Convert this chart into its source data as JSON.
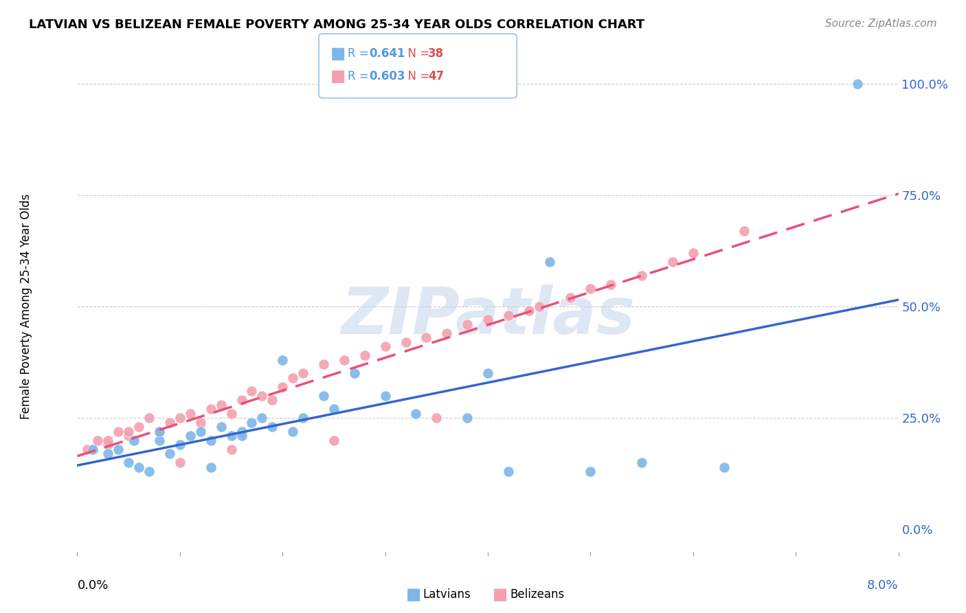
{
  "title": "LATVIAN VS BELIZEAN FEMALE POVERTY AMONG 25-34 YEAR OLDS CORRELATION CHART",
  "source": "Source: ZipAtlas.com",
  "ylabel": "Female Poverty Among 25-34 Year Olds",
  "ytick_labels": [
    "0.0%",
    "25.0%",
    "50.0%",
    "75.0%",
    "100.0%"
  ],
  "ytick_values": [
    0.0,
    0.25,
    0.5,
    0.75,
    1.0
  ],
  "xmin": 0.0,
  "xmax": 0.08,
  "ymin": -0.05,
  "ymax": 1.05,
  "latvian_R": 0.641,
  "latvian_N": 38,
  "belizean_R": 0.603,
  "belizean_N": 47,
  "latvian_color": "#7EB6E8",
  "belizean_color": "#F4A0B0",
  "latvian_line_color": "#3366CC",
  "belizean_line_color": "#E8507A",
  "legend_R_color": "#5599DD",
  "legend_N_color": "#E05050",
  "watermark": "ZIPatlas",
  "watermark_color": "#C8D8EE",
  "latvian_x": [
    0.004,
    0.005,
    0.006,
    0.007,
    0.008,
    0.009,
    0.01,
    0.011,
    0.012,
    0.013,
    0.014,
    0.015,
    0.016,
    0.017,
    0.018,
    0.019,
    0.02,
    0.021,
    0.022,
    0.024,
    0.025,
    0.027,
    0.03,
    0.033,
    0.038,
    0.04,
    0.042,
    0.046,
    0.05,
    0.055,
    0.0015,
    0.003,
    0.0055,
    0.008,
    0.013,
    0.016,
    0.063,
    0.076
  ],
  "latvian_y": [
    0.18,
    0.15,
    0.14,
    0.13,
    0.2,
    0.17,
    0.19,
    0.21,
    0.22,
    0.2,
    0.23,
    0.21,
    0.22,
    0.24,
    0.25,
    0.23,
    0.38,
    0.22,
    0.25,
    0.3,
    0.27,
    0.35,
    0.3,
    0.26,
    0.25,
    0.35,
    0.13,
    0.6,
    0.13,
    0.15,
    0.18,
    0.17,
    0.2,
    0.22,
    0.14,
    0.21,
    0.14,
    1.0
  ],
  "belizean_x": [
    0.001,
    0.002,
    0.003,
    0.004,
    0.005,
    0.006,
    0.007,
    0.008,
    0.009,
    0.01,
    0.011,
    0.012,
    0.013,
    0.014,
    0.015,
    0.016,
    0.017,
    0.018,
    0.019,
    0.02,
    0.021,
    0.022,
    0.024,
    0.026,
    0.028,
    0.03,
    0.032,
    0.034,
    0.036,
    0.038,
    0.04,
    0.042,
    0.044,
    0.048,
    0.05,
    0.052,
    0.055,
    0.058,
    0.06,
    0.065,
    0.003,
    0.005,
    0.01,
    0.015,
    0.025,
    0.035,
    0.045
  ],
  "belizean_y": [
    0.18,
    0.2,
    0.19,
    0.22,
    0.21,
    0.23,
    0.25,
    0.22,
    0.24,
    0.25,
    0.26,
    0.24,
    0.27,
    0.28,
    0.26,
    0.29,
    0.31,
    0.3,
    0.29,
    0.32,
    0.34,
    0.35,
    0.37,
    0.38,
    0.39,
    0.41,
    0.42,
    0.43,
    0.44,
    0.46,
    0.47,
    0.48,
    0.49,
    0.52,
    0.54,
    0.55,
    0.57,
    0.6,
    0.62,
    0.67,
    0.2,
    0.22,
    0.15,
    0.18,
    0.2,
    0.25,
    0.5
  ],
  "grid_color": "#CCCCCC",
  "background_color": "#FFFFFF"
}
